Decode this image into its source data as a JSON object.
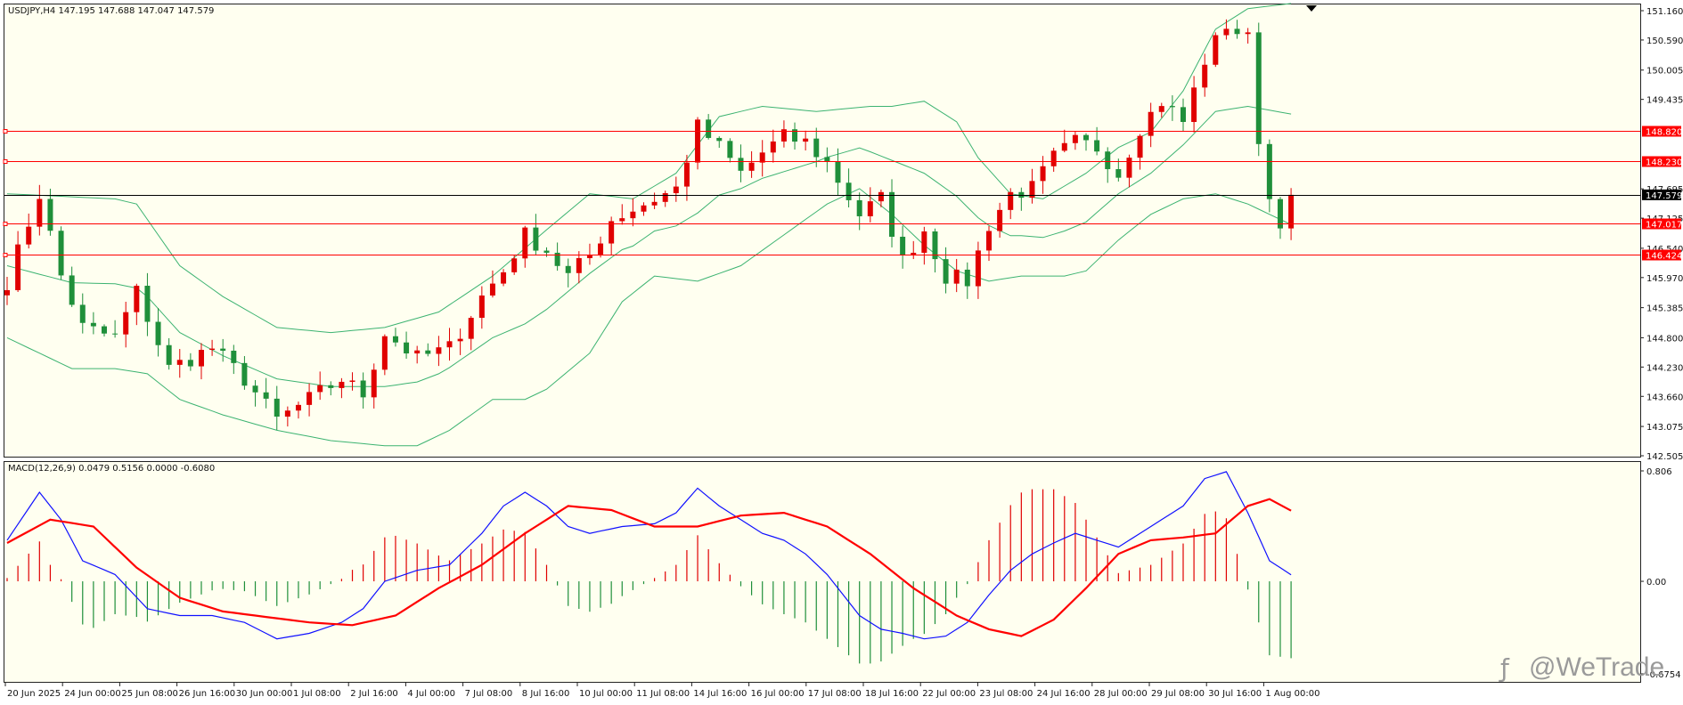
{
  "chart_data": [
    {
      "type": "candlestick",
      "symbol_header": "USDJPY,H4  147.195 147.688 147.047 147.579",
      "ylim": [
        142.505,
        151.16
      ],
      "price_ticks": [
        "151.160",
        "150.590",
        "150.005",
        "149.435",
        "148.820",
        "148.230",
        "147.695",
        "147.579",
        "147.125",
        "147.017",
        "146.540",
        "146.424",
        "145.970",
        "145.385",
        "144.800",
        "144.230",
        "143.660",
        "143.075",
        "142.505"
      ],
      "current_price": "147.579",
      "levels": [
        {
          "label": "148.820",
          "value": 148.82
        },
        {
          "label": "148.230",
          "value": 148.23
        },
        {
          "label": "147.017",
          "value": 147.017
        },
        {
          "label": "146.424",
          "value": 146.424
        }
      ],
      "time_labels": [
        "20 Jun 2025",
        "24 Jun 00:00",
        "25 Jun 08:00",
        "26 Jun 16:00",
        "30 Jun 00:00",
        "1 Jul 08:00",
        "2 Jul 16:00",
        "4 Jul 00:00",
        "7 Jul 08:00",
        "8 Jul 16:00",
        "10 Jul 00:00",
        "11 Jul 08:00",
        "14 Jul 16:00",
        "16 Jul 00:00",
        "17 Jul 08:00",
        "18 Jul 16:00",
        "22 Jul 00:00",
        "23 Jul 08:00",
        "24 Jul 16:00",
        "28 Jul 00:00",
        "29 Jul 08:00",
        "30 Jul 16:00",
        "1 Aug 00:00"
      ],
      "close_path": [
        [
          0,
          145.9
        ],
        [
          3,
          147.6
        ],
        [
          5,
          146.0
        ],
        [
          7,
          145.0
        ],
        [
          10,
          144.8
        ],
        [
          12,
          145.7
        ],
        [
          15,
          144.2
        ],
        [
          19,
          144.6
        ],
        [
          22,
          144.0
        ],
        [
          25,
          143.2
        ],
        [
          28,
          143.6
        ],
        [
          31,
          144.0
        ],
        [
          33,
          143.7
        ],
        [
          35,
          144.9
        ],
        [
          38,
          144.4
        ],
        [
          41,
          144.6
        ],
        [
          44,
          145.6
        ],
        [
          46,
          146.1
        ],
        [
          48,
          146.8
        ],
        [
          50,
          146.5
        ],
        [
          52,
          146.0
        ],
        [
          54,
          146.4
        ],
        [
          56,
          147.1
        ],
        [
          59,
          147.4
        ],
        [
          62,
          147.7
        ],
        [
          64,
          148.9
        ],
        [
          66,
          148.5
        ],
        [
          68,
          148.0
        ],
        [
          70,
          148.4
        ],
        [
          72,
          148.7
        ],
        [
          74,
          148.6
        ],
        [
          76,
          148.2
        ],
        [
          79,
          147.2
        ],
        [
          81,
          147.5
        ],
        [
          83,
          146.3
        ],
        [
          85,
          146.9
        ],
        [
          87,
          146.0
        ],
        [
          89,
          145.9
        ],
        [
          91,
          147.0
        ],
        [
          93,
          147.6
        ],
        [
          95,
          147.7
        ],
        [
          97,
          148.3
        ],
        [
          99,
          148.6
        ],
        [
          101,
          148.5
        ],
        [
          103,
          148.0
        ],
        [
          105,
          148.9
        ],
        [
          107,
          149.4
        ],
        [
          109,
          149.0
        ],
        [
          111,
          150.2
        ],
        [
          113,
          150.9
        ],
        [
          115,
          150.6
        ],
        [
          116,
          148.7
        ],
        [
          117,
          147.5
        ],
        [
          118,
          147.1
        ],
        [
          119,
          147.579
        ]
      ],
      "bb_upper_path": [
        [
          0,
          147.6
        ],
        [
          10,
          147.5
        ],
        [
          12,
          147.4
        ],
        [
          16,
          146.2
        ],
        [
          20,
          145.6
        ],
        [
          25,
          145.0
        ],
        [
          30,
          144.9
        ],
        [
          35,
          145.0
        ],
        [
          40,
          145.3
        ],
        [
          45,
          146.0
        ],
        [
          50,
          146.9
        ],
        [
          54,
          147.6
        ],
        [
          58,
          147.5
        ],
        [
          62,
          148.0
        ],
        [
          66,
          149.1
        ],
        [
          70,
          149.3
        ],
        [
          75,
          149.2
        ],
        [
          80,
          149.3
        ],
        [
          82,
          149.3
        ],
        [
          85,
          149.4
        ],
        [
          88,
          149.0
        ],
        [
          90,
          148.3
        ],
        [
          93,
          147.6
        ],
        [
          96,
          147.5
        ],
        [
          100,
          148.0
        ],
        [
          103,
          148.5
        ],
        [
          106,
          148.8
        ],
        [
          109,
          149.6
        ],
        [
          112,
          150.8
        ],
        [
          115,
          151.2
        ],
        [
          119,
          151.3
        ]
      ],
      "bb_lower_path": [
        [
          0,
          144.8
        ],
        [
          3,
          144.5
        ],
        [
          6,
          144.2
        ],
        [
          10,
          144.2
        ],
        [
          13,
          144.1
        ],
        [
          16,
          143.6
        ],
        [
          20,
          143.3
        ],
        [
          25,
          143.0
        ],
        [
          30,
          142.8
        ],
        [
          35,
          142.7
        ],
        [
          38,
          142.7
        ],
        [
          41,
          143.0
        ],
        [
          45,
          143.6
        ],
        [
          48,
          143.6
        ],
        [
          50,
          143.8
        ],
        [
          54,
          144.5
        ],
        [
          57,
          145.5
        ],
        [
          60,
          146.0
        ],
        [
          64,
          145.9
        ],
        [
          68,
          146.2
        ],
        [
          72,
          146.8
        ],
        [
          76,
          147.4
        ],
        [
          79,
          147.7
        ],
        [
          82,
          147.2
        ],
        [
          85,
          146.6
        ],
        [
          88,
          146.1
        ],
        [
          91,
          145.9
        ],
        [
          94,
          146.0
        ],
        [
          98,
          146.0
        ],
        [
          100,
          146.1
        ],
        [
          103,
          146.7
        ],
        [
          106,
          147.2
        ],
        [
          109,
          147.5
        ],
        [
          112,
          147.6
        ],
        [
          115,
          147.4
        ],
        [
          119,
          147.0
        ]
      ]
    },
    {
      "type": "macd",
      "title": "MACD(12,26,9) 0.0479 0.5156 0.0000 -0.6080",
      "ylim": [
        -0.6754,
        0.806
      ],
      "ticks": [
        "0.806",
        "0.00",
        "-0.6754"
      ],
      "macd_path": [
        [
          0,
          0.3
        ],
        [
          3,
          0.65
        ],
        [
          5,
          0.45
        ],
        [
          7,
          0.15
        ],
        [
          10,
          0.05
        ],
        [
          13,
          -0.2
        ],
        [
          16,
          -0.25
        ],
        [
          19,
          -0.25
        ],
        [
          22,
          -0.3
        ],
        [
          25,
          -0.42
        ],
        [
          28,
          -0.38
        ],
        [
          31,
          -0.3
        ],
        [
          33,
          -0.2
        ],
        [
          35,
          0.0
        ],
        [
          38,
          0.08
        ],
        [
          41,
          0.12
        ],
        [
          44,
          0.35
        ],
        [
          46,
          0.55
        ],
        [
          48,
          0.65
        ],
        [
          50,
          0.55
        ],
        [
          52,
          0.4
        ],
        [
          54,
          0.35
        ],
        [
          57,
          0.4
        ],
        [
          60,
          0.42
        ],
        [
          62,
          0.5
        ],
        [
          64,
          0.68
        ],
        [
          66,
          0.55
        ],
        [
          68,
          0.45
        ],
        [
          70,
          0.35
        ],
        [
          72,
          0.3
        ],
        [
          74,
          0.2
        ],
        [
          76,
          0.05
        ],
        [
          79,
          -0.25
        ],
        [
          81,
          -0.35
        ],
        [
          83,
          -0.38
        ],
        [
          85,
          -0.42
        ],
        [
          87,
          -0.4
        ],
        [
          89,
          -0.3
        ],
        [
          91,
          -0.1
        ],
        [
          93,
          0.08
        ],
        [
          95,
          0.2
        ],
        [
          97,
          0.28
        ],
        [
          99,
          0.35
        ],
        [
          101,
          0.3
        ],
        [
          103,
          0.25
        ],
        [
          105,
          0.35
        ],
        [
          107,
          0.45
        ],
        [
          109,
          0.55
        ],
        [
          111,
          0.75
        ],
        [
          113,
          0.8
        ],
        [
          115,
          0.5
        ],
        [
          117,
          0.15
        ],
        [
          119,
          0.0479
        ]
      ],
      "signal_path": [
        [
          0,
          0.28
        ],
        [
          4,
          0.45
        ],
        [
          8,
          0.4
        ],
        [
          12,
          0.1
        ],
        [
          16,
          -0.12
        ],
        [
          20,
          -0.22
        ],
        [
          24,
          -0.26
        ],
        [
          28,
          -0.3
        ],
        [
          32,
          -0.32
        ],
        [
          36,
          -0.25
        ],
        [
          40,
          -0.05
        ],
        [
          44,
          0.12
        ],
        [
          48,
          0.35
        ],
        [
          52,
          0.55
        ],
        [
          56,
          0.52
        ],
        [
          60,
          0.4
        ],
        [
          64,
          0.4
        ],
        [
          68,
          0.48
        ],
        [
          72,
          0.5
        ],
        [
          76,
          0.4
        ],
        [
          80,
          0.2
        ],
        [
          84,
          -0.05
        ],
        [
          88,
          -0.25
        ],
        [
          91,
          -0.35
        ],
        [
          94,
          -0.4
        ],
        [
          97,
          -0.28
        ],
        [
          100,
          -0.05
        ],
        [
          103,
          0.2
        ],
        [
          106,
          0.3
        ],
        [
          109,
          0.32
        ],
        [
          112,
          0.35
        ],
        [
          115,
          0.55
        ],
        [
          117,
          0.6
        ],
        [
          119,
          0.5156
        ]
      ]
    }
  ],
  "watermark": "@WeTrade"
}
